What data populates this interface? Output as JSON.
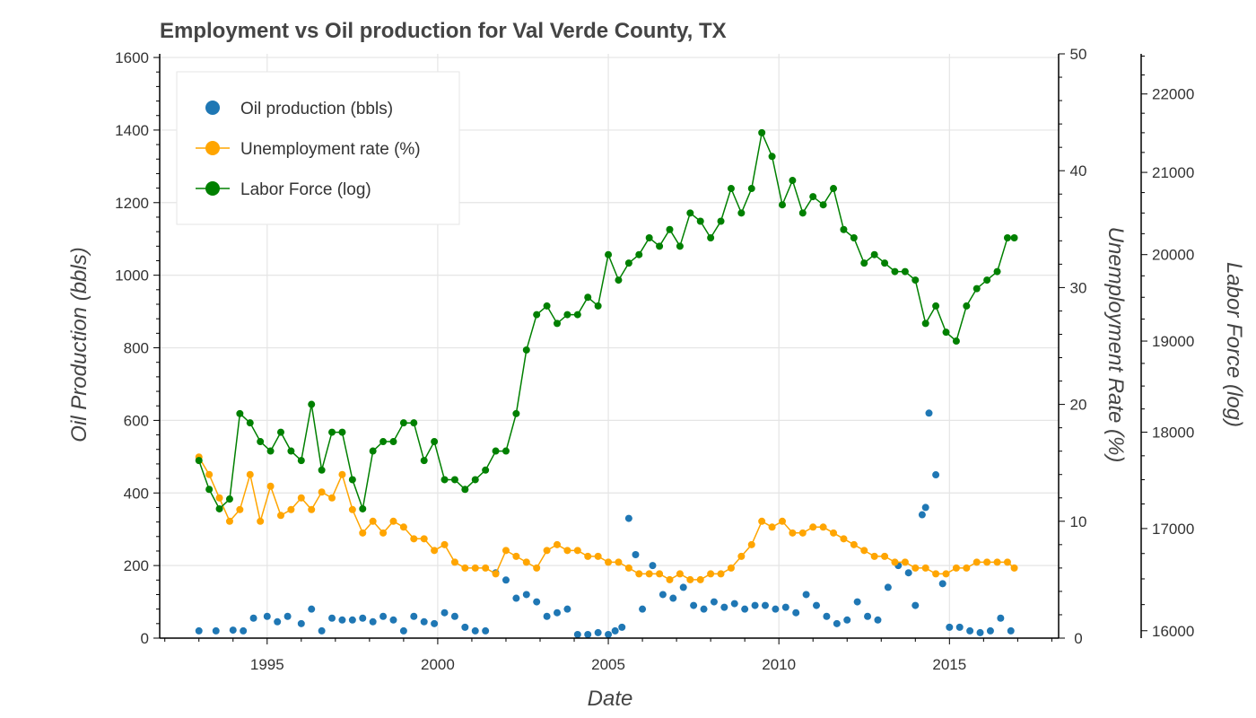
{
  "chart_data": {
    "type": "line",
    "title": "Employment vs Oil production for Val Verde County, TX",
    "xlabel": "Date",
    "ylabel": "Oil Production (bbls)",
    "ylabel_right": "Unemployment Rate (%)",
    "ylabel_right2": "Labor Force (log)",
    "xlim": [
      1991.85,
      2018.2
    ],
    "ylim": [
      0,
      1610
    ],
    "ylim_right": [
      0,
      50
    ],
    "ylim_right2": [
      15930,
      22530
    ],
    "x_ticks": [
      1995,
      2000,
      2005,
      2010,
      2015
    ],
    "y_ticks": [
      0,
      200,
      400,
      600,
      800,
      1000,
      1200,
      1400,
      1600
    ],
    "y_right_ticks": [
      0,
      10,
      20,
      30,
      40,
      50
    ],
    "y_right2_ticks": [
      16000,
      17000,
      18000,
      19000,
      20000,
      21000,
      22000
    ],
    "grid": true,
    "legend_position": "top-left",
    "series": [
      {
        "name": "Oil production (bbls)",
        "color": "#1f77b4",
        "style": "scatter",
        "axis": "left",
        "x": [
          1993.0,
          1993.5,
          1994.0,
          1994.3,
          1994.6,
          1995.0,
          1995.3,
          1995.6,
          1996.0,
          1996.3,
          1996.6,
          1996.9,
          1997.2,
          1997.5,
          1997.8,
          1998.1,
          1998.4,
          1998.7,
          1999.0,
          1999.3,
          1999.6,
          1999.9,
          2000.2,
          2000.5,
          2000.8,
          2001.1,
          2001.4,
          2001.7,
          2002.0,
          2002.3,
          2002.6,
          2002.9,
          2003.2,
          2003.5,
          2003.8,
          2004.1,
          2004.4,
          2004.7,
          2005.0,
          2005.2,
          2005.4,
          2005.6,
          2005.8,
          2006.0,
          2006.3,
          2006.6,
          2006.9,
          2007.2,
          2007.5,
          2007.8,
          2008.1,
          2008.4,
          2008.7,
          2009.0,
          2009.3,
          2009.6,
          2009.9,
          2010.2,
          2010.5,
          2010.8,
          2011.1,
          2011.4,
          2011.7,
          2012.0,
          2012.3,
          2012.6,
          2012.9,
          2013.2,
          2013.5,
          2013.8,
          2014.0,
          2014.2,
          2014.3,
          2014.4,
          2014.6,
          2014.8,
          2015.0,
          2015.3,
          2015.6,
          2015.9,
          2016.2,
          2016.5,
          2016.8
        ],
        "values": [
          20,
          20,
          22,
          20,
          55,
          60,
          45,
          60,
          40,
          80,
          20,
          55,
          50,
          50,
          55,
          45,
          60,
          50,
          20,
          60,
          45,
          40,
          70,
          60,
          30,
          20,
          20,
          180,
          160,
          110,
          120,
          100,
          60,
          70,
          80,
          10,
          10,
          15,
          10,
          20,
          30,
          330,
          230,
          80,
          200,
          120,
          110,
          140,
          90,
          80,
          100,
          85,
          95,
          80,
          90,
          90,
          80,
          85,
          70,
          120,
          90,
          60,
          40,
          50,
          100,
          60,
          50,
          140,
          200,
          180,
          90,
          340,
          360,
          620,
          450,
          150,
          30,
          30,
          20,
          15,
          20,
          55,
          20
        ]
      },
      {
        "name": "Unemployment rate (%)",
        "color": "#ffa500",
        "style": "line-marker",
        "axis": "right",
        "x": [
          1993.0,
          1993.3,
          1993.6,
          1993.9,
          1994.2,
          1994.5,
          1994.8,
          1995.1,
          1995.4,
          1995.7,
          1996.0,
          1996.3,
          1996.6,
          1996.9,
          1997.2,
          1997.5,
          1997.8,
          1998.1,
          1998.4,
          1998.7,
          1999.0,
          1999.3,
          1999.6,
          1999.9,
          2000.2,
          2000.5,
          2000.8,
          2001.1,
          2001.4,
          2001.7,
          2002.0,
          2002.3,
          2002.6,
          2002.9,
          2003.2,
          2003.5,
          2003.8,
          2004.1,
          2004.4,
          2004.7,
          2005.0,
          2005.3,
          2005.6,
          2005.9,
          2006.2,
          2006.5,
          2006.8,
          2007.1,
          2007.4,
          2007.7,
          2008.0,
          2008.3,
          2008.6,
          2008.9,
          2009.2,
          2009.5,
          2009.8,
          2010.1,
          2010.4,
          2010.7,
          2011.0,
          2011.3,
          2011.6,
          2011.9,
          2012.2,
          2012.5,
          2012.8,
          2013.1,
          2013.4,
          2013.7,
          2014.0,
          2014.3,
          2014.6,
          2014.9,
          2015.2,
          2015.5,
          2015.8,
          2016.1,
          2016.4,
          2016.7,
          2016.9
        ],
        "values": [
          15.5,
          14,
          12,
          10,
          11,
          14,
          10,
          13,
          10.5,
          11,
          12,
          11,
          12.5,
          12,
          14,
          11,
          9,
          10,
          9,
          10,
          9.5,
          8.5,
          8.5,
          7.5,
          8,
          6.5,
          6,
          6,
          6,
          5.5,
          7.5,
          7,
          6.5,
          6,
          7.5,
          8,
          7.5,
          7.5,
          7,
          7,
          6.5,
          6.5,
          6,
          5.5,
          5.5,
          5.5,
          5,
          5.5,
          5,
          5,
          5.5,
          5.5,
          6,
          7,
          8,
          10,
          9.5,
          10,
          9,
          9,
          9.5,
          9.5,
          9,
          8.5,
          8,
          7.5,
          7,
          7,
          6.5,
          6.5,
          6,
          6,
          5.5,
          5.5,
          6,
          6,
          6.5,
          6.5,
          6.5,
          6.5,
          6
        ]
      },
      {
        "name": "Labor Force (log)",
        "color": "#008000",
        "style": "line-marker",
        "axis": "right2",
        "x": [
          1993.0,
          1993.3,
          1993.6,
          1993.9,
          1994.2,
          1994.5,
          1994.8,
          1995.1,
          1995.4,
          1995.7,
          1996.0,
          1996.3,
          1996.6,
          1996.9,
          1997.2,
          1997.5,
          1997.8,
          1998.1,
          1998.4,
          1998.7,
          1999.0,
          1999.3,
          1999.6,
          1999.9,
          2000.2,
          2000.5,
          2000.8,
          2001.1,
          2001.4,
          2001.7,
          2002.0,
          2002.3,
          2002.6,
          2002.9,
          2003.2,
          2003.5,
          2003.8,
          2004.1,
          2004.4,
          2004.7,
          2005.0,
          2005.3,
          2005.6,
          2005.9,
          2006.2,
          2006.5,
          2006.8,
          2007.1,
          2007.4,
          2007.7,
          2008.0,
          2008.3,
          2008.6,
          2008.9,
          2009.2,
          2009.5,
          2009.8,
          2010.1,
          2010.4,
          2010.7,
          2011.0,
          2011.3,
          2011.6,
          2011.9,
          2012.2,
          2012.5,
          2012.8,
          2013.1,
          2013.4,
          2013.7,
          2014.0,
          2014.3,
          2014.6,
          2014.9,
          2015.2,
          2015.5,
          2015.8,
          2016.1,
          2016.4,
          2016.7,
          2016.9
        ],
        "values": [
          17700,
          17400,
          17200,
          17300,
          18200,
          18100,
          17900,
          17800,
          18000,
          17800,
          17700,
          18300,
          17600,
          18000,
          18000,
          17500,
          17200,
          17800,
          17900,
          17900,
          18100,
          18100,
          17700,
          17900,
          17500,
          17500,
          17400,
          17500,
          17600,
          17800,
          17800,
          18200,
          18900,
          19300,
          19400,
          19200,
          19300,
          19300,
          19500,
          19400,
          20000,
          19700,
          19900,
          20000,
          20200,
          20100,
          20300,
          20100,
          20500,
          20400,
          20200,
          20400,
          20800,
          20500,
          20800,
          21500,
          21200,
          20600,
          20900,
          20500,
          20700,
          20600,
          20800,
          20300,
          20200,
          19900,
          20000,
          19900,
          19800,
          19800,
          19700,
          19200,
          19400,
          19100,
          19000,
          19400,
          19600,
          19700,
          19800,
          20200,
          20200
        ]
      }
    ]
  }
}
